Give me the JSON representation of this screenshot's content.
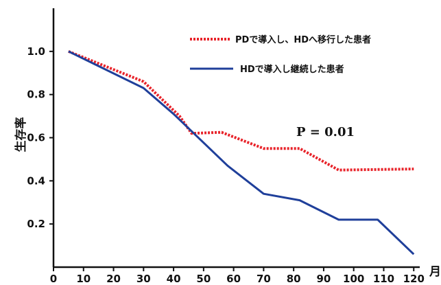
{
  "chart_data": {
    "type": "line",
    "xlabel": "月",
    "ylabel": "生存率",
    "xlim": [
      0,
      122
    ],
    "ylim": [
      0,
      1.2
    ],
    "xticks": [
      0,
      10,
      20,
      30,
      40,
      50,
      60,
      70,
      80,
      90,
      100,
      110,
      120
    ],
    "yticks": [
      0.2,
      0.4,
      0.6,
      0.8,
      1.0
    ],
    "ytick_labels": [
      "0.2",
      "0.4",
      "0.6",
      "0.8",
      "1.0"
    ],
    "grid": false,
    "legend_position": "top-right",
    "annotation": "P = 0.01",
    "series": [
      {
        "name": "PDで導入し、HDへ移行した患者",
        "color": "#e8232a",
        "style": "dotted",
        "x": [
          5,
          30,
          42,
          46,
          56,
          70,
          82,
          95,
          120
        ],
        "y": [
          1.0,
          0.86,
          0.7,
          0.62,
          0.625,
          0.55,
          0.55,
          0.45,
          0.455
        ]
      },
      {
        "name": "HDで導入し継続した患者",
        "color": "#1f3f9a",
        "style": "solid",
        "x": [
          5,
          30,
          40,
          58,
          70,
          82,
          95,
          108,
          120
        ],
        "y": [
          1.0,
          0.83,
          0.71,
          0.47,
          0.34,
          0.31,
          0.22,
          0.22,
          0.06
        ]
      }
    ]
  }
}
